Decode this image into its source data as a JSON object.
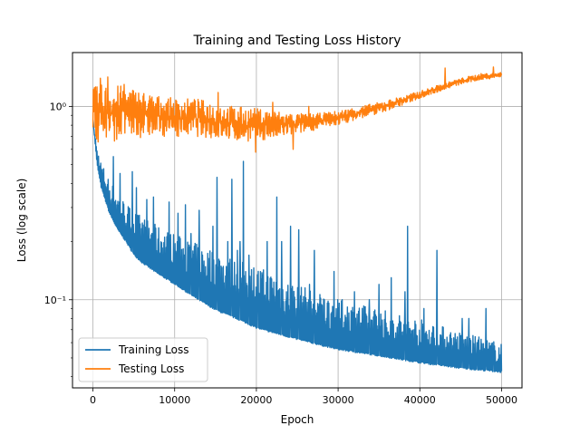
{
  "chart_data": {
    "type": "line",
    "title": "Training and Testing Loss History",
    "xlabel": "Epoch",
    "ylabel": "Loss (log scale)",
    "xlim": [
      -2500,
      52500
    ],
    "ylim": [
      0.035,
      1.9
    ],
    "y_scale": "log",
    "grid": true,
    "legend_position": "lower-left",
    "x_ticks": [
      0,
      10000,
      20000,
      30000,
      40000,
      50000
    ],
    "x_tick_labels": [
      "0",
      "10000",
      "20000",
      "30000",
      "40000",
      "50000"
    ],
    "y_ticks": [
      0.1,
      1
    ],
    "y_tick_labels": [
      "10⁻¹",
      "10⁰"
    ],
    "series": [
      {
        "name": "Training Loss",
        "color": "#1f77b4",
        "x": [
          0,
          500,
          1000,
          2000,
          3000,
          4000,
          5000,
          6000,
          8000,
          10000,
          12000,
          15000,
          18000,
          20000,
          25000,
          30000,
          35000,
          40000,
          45000,
          50000
        ],
        "lower": [
          0.85,
          0.5,
          0.38,
          0.28,
          0.23,
          0.2,
          0.17,
          0.155,
          0.135,
          0.12,
          0.105,
          0.088,
          0.078,
          0.071,
          0.062,
          0.055,
          0.051,
          0.047,
          0.044,
          0.042
        ],
        "upper": [
          0.85,
          0.62,
          0.52,
          0.42,
          0.36,
          0.32,
          0.29,
          0.27,
          0.24,
          0.22,
          0.2,
          0.18,
          0.16,
          0.15,
          0.12,
          0.1,
          0.09,
          0.08,
          0.068,
          0.06
        ],
        "spikes": [
          {
            "x": 2500,
            "y": 0.55
          },
          {
            "x": 3300,
            "y": 0.45
          },
          {
            "x": 4800,
            "y": 0.46
          },
          {
            "x": 5300,
            "y": 0.38
          },
          {
            "x": 6600,
            "y": 0.33
          },
          {
            "x": 7400,
            "y": 0.34
          },
          {
            "x": 9300,
            "y": 0.32
          },
          {
            "x": 10400,
            "y": 0.28
          },
          {
            "x": 11300,
            "y": 0.31
          },
          {
            "x": 12000,
            "y": 0.22
          },
          {
            "x": 13000,
            "y": 0.29
          },
          {
            "x": 14700,
            "y": 0.24
          },
          {
            "x": 15200,
            "y": 0.43
          },
          {
            "x": 16500,
            "y": 0.2
          },
          {
            "x": 17000,
            "y": 0.42
          },
          {
            "x": 17700,
            "y": 0.18
          },
          {
            "x": 18000,
            "y": 0.2
          },
          {
            "x": 18400,
            "y": 0.52
          },
          {
            "x": 19100,
            "y": 0.17
          },
          {
            "x": 20200,
            "y": 0.12
          },
          {
            "x": 21300,
            "y": 0.2
          },
          {
            "x": 22500,
            "y": 0.34
          },
          {
            "x": 23100,
            "y": 0.2
          },
          {
            "x": 24200,
            "y": 0.24
          },
          {
            "x": 25200,
            "y": 0.23
          },
          {
            "x": 26500,
            "y": 0.12
          },
          {
            "x": 27100,
            "y": 0.18
          },
          {
            "x": 28300,
            "y": 0.1
          },
          {
            "x": 29500,
            "y": 0.14
          },
          {
            "x": 30500,
            "y": 0.1
          },
          {
            "x": 32000,
            "y": 0.11
          },
          {
            "x": 33800,
            "y": 0.1
          },
          {
            "x": 35000,
            "y": 0.12
          },
          {
            "x": 36500,
            "y": 0.13
          },
          {
            "x": 38200,
            "y": 0.11
          },
          {
            "x": 38500,
            "y": 0.24
          },
          {
            "x": 40500,
            "y": 0.09
          },
          {
            "x": 42100,
            "y": 0.18
          },
          {
            "x": 43500,
            "y": 0.06
          },
          {
            "x": 45200,
            "y": 0.08
          },
          {
            "x": 46000,
            "y": 0.08
          },
          {
            "x": 47000,
            "y": 0.06
          },
          {
            "x": 48100,
            "y": 0.09
          },
          {
            "x": 49000,
            "y": 0.048
          }
        ]
      },
      {
        "name": "Testing Loss",
        "color": "#ff7f0e",
        "x": [
          0,
          1000,
          2500,
          5000,
          7500,
          10000,
          12500,
          15000,
          17500,
          20000,
          22500,
          25000,
          27500,
          30000,
          32500,
          35000,
          37500,
          40000,
          42500,
          45000,
          47500,
          50000
        ],
        "lower": [
          0.62,
          0.66,
          0.66,
          0.68,
          0.7,
          0.7,
          0.7,
          0.68,
          0.66,
          0.66,
          0.68,
          0.72,
          0.76,
          0.8,
          0.86,
          0.92,
          1.0,
          1.1,
          1.2,
          1.3,
          1.37,
          1.42
        ],
        "upper": [
          1.25,
          1.3,
          1.3,
          1.25,
          1.15,
          1.1,
          1.1,
          1.05,
          1.0,
          0.98,
          0.95,
          0.92,
          0.92,
          0.95,
          1.0,
          1.05,
          1.12,
          1.2,
          1.3,
          1.4,
          1.48,
          1.5
        ],
        "spikes": [
          {
            "x": 200,
            "y": 1.25
          },
          {
            "x": 900,
            "y": 1.4
          },
          {
            "x": 1800,
            "y": 1.42
          },
          {
            "x": 3800,
            "y": 1.3
          },
          {
            "x": 7900,
            "y": 1.05
          },
          {
            "x": 10500,
            "y": 1.02
          },
          {
            "x": 15300,
            "y": 1.18
          },
          {
            "x": 19900,
            "y": 0.58
          },
          {
            "x": 22000,
            "y": 1.05
          },
          {
            "x": 24500,
            "y": 0.6
          },
          {
            "x": 26400,
            "y": 1.0
          },
          {
            "x": 43100,
            "y": 1.58
          },
          {
            "x": 49000,
            "y": 1.6
          }
        ]
      }
    ]
  }
}
